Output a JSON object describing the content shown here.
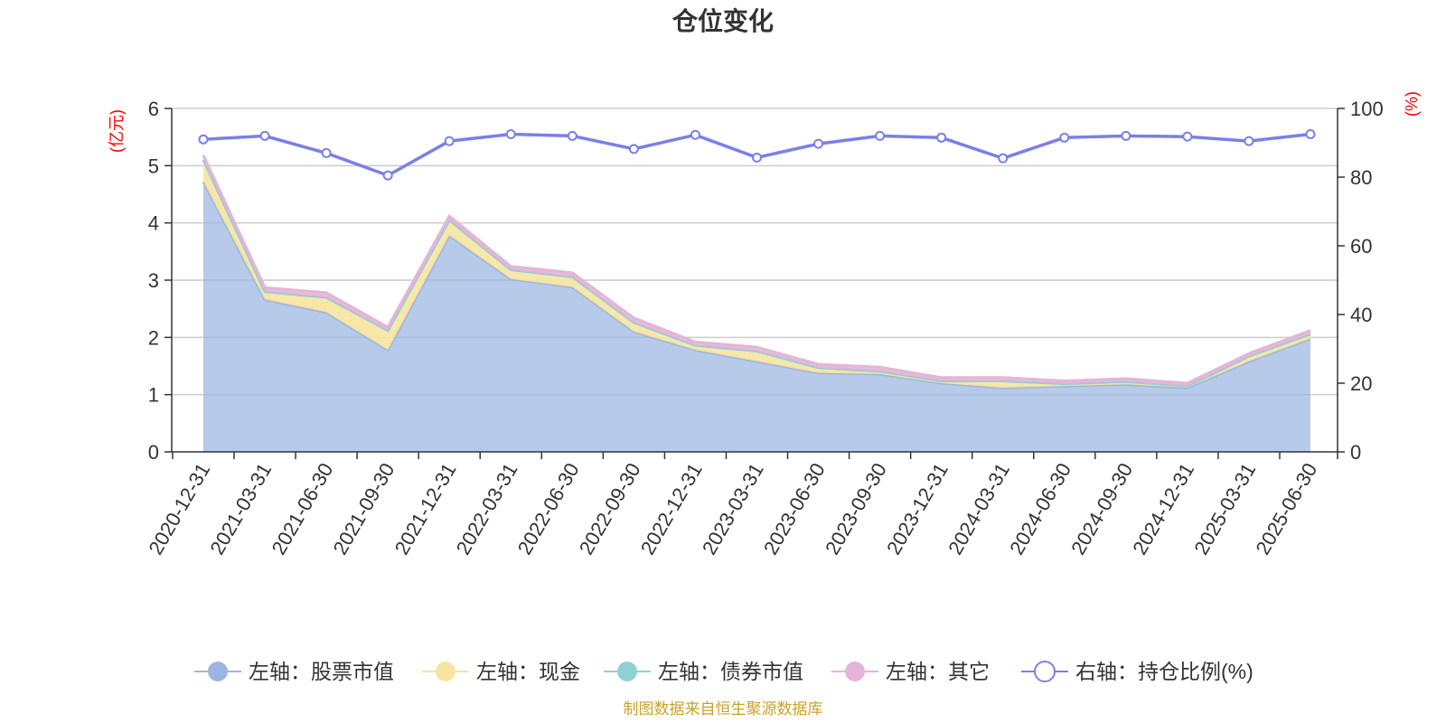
{
  "chart_data": {
    "type": "area",
    "title": "仓位变化",
    "source_note": "制图数据来自恒生聚源数据库",
    "x": [
      "2020-12-31",
      "2021-03-31",
      "2021-06-30",
      "2021-09-30",
      "2021-12-31",
      "2022-03-31",
      "2022-06-30",
      "2022-09-30",
      "2022-12-31",
      "2023-03-31",
      "2023-06-30",
      "2023-09-30",
      "2023-12-31",
      "2024-03-31",
      "2024-06-30",
      "2024-09-30",
      "2024-12-31",
      "2025-03-31",
      "2025-06-30"
    ],
    "left_axis": {
      "unit_label": "(亿元)",
      "ylim": [
        0,
        6
      ],
      "ticks": [
        "0",
        "1",
        "2",
        "3",
        "4",
        "5",
        "6"
      ]
    },
    "right_axis": {
      "unit_label": "(%)",
      "ylim": [
        0,
        100
      ],
      "ticks": [
        "0",
        "20",
        "40",
        "60",
        "80",
        "100"
      ]
    },
    "stacked": true,
    "series": [
      {
        "name": "左轴：股票市值",
        "axis": "left",
        "type": "area",
        "color": "#9bb6e0",
        "values": [
          4.72,
          2.66,
          2.44,
          1.78,
          3.78,
          3.02,
          2.88,
          2.1,
          1.78,
          1.58,
          1.38,
          1.36,
          1.2,
          1.12,
          1.15,
          1.18,
          1.12,
          1.58,
          1.98
        ]
      },
      {
        "name": "左轴：现金",
        "axis": "left",
        "type": "area",
        "color": "#f7e4a0",
        "values": [
          0.38,
          0.14,
          0.26,
          0.34,
          0.27,
          0.16,
          0.18,
          0.16,
          0.08,
          0.18,
          0.09,
          0.05,
          0.04,
          0.12,
          0.04,
          0.05,
          0.03,
          0.09,
          0.08
        ]
      },
      {
        "name": "左轴：债券市值",
        "axis": "left",
        "type": "area",
        "color": "#8fd0d2",
        "values": [
          0,
          0,
          0,
          0,
          0,
          0,
          0,
          0,
          0,
          0,
          0,
          0,
          0,
          0,
          0,
          0,
          0,
          0,
          0
        ]
      },
      {
        "name": "左轴：其它",
        "axis": "left",
        "type": "area",
        "color": "#e6b4d8",
        "values": [
          0.08,
          0.07,
          0.08,
          0.06,
          0.07,
          0.06,
          0.07,
          0.08,
          0.06,
          0.07,
          0.06,
          0.07,
          0.06,
          0.06,
          0.05,
          0.05,
          0.05,
          0.05,
          0.06
        ]
      },
      {
        "name": "右轴：持仓比例(%)",
        "axis": "right",
        "type": "line",
        "color": "#7b7fe8",
        "values": [
          91.0,
          92.0,
          87.0,
          80.5,
          90.5,
          92.5,
          92.0,
          88.2,
          92.3,
          85.7,
          89.7,
          92.0,
          91.5,
          85.5,
          91.5,
          92.0,
          91.8,
          90.5,
          92.5
        ]
      }
    ],
    "legend_position": "bottom",
    "grid": true
  }
}
